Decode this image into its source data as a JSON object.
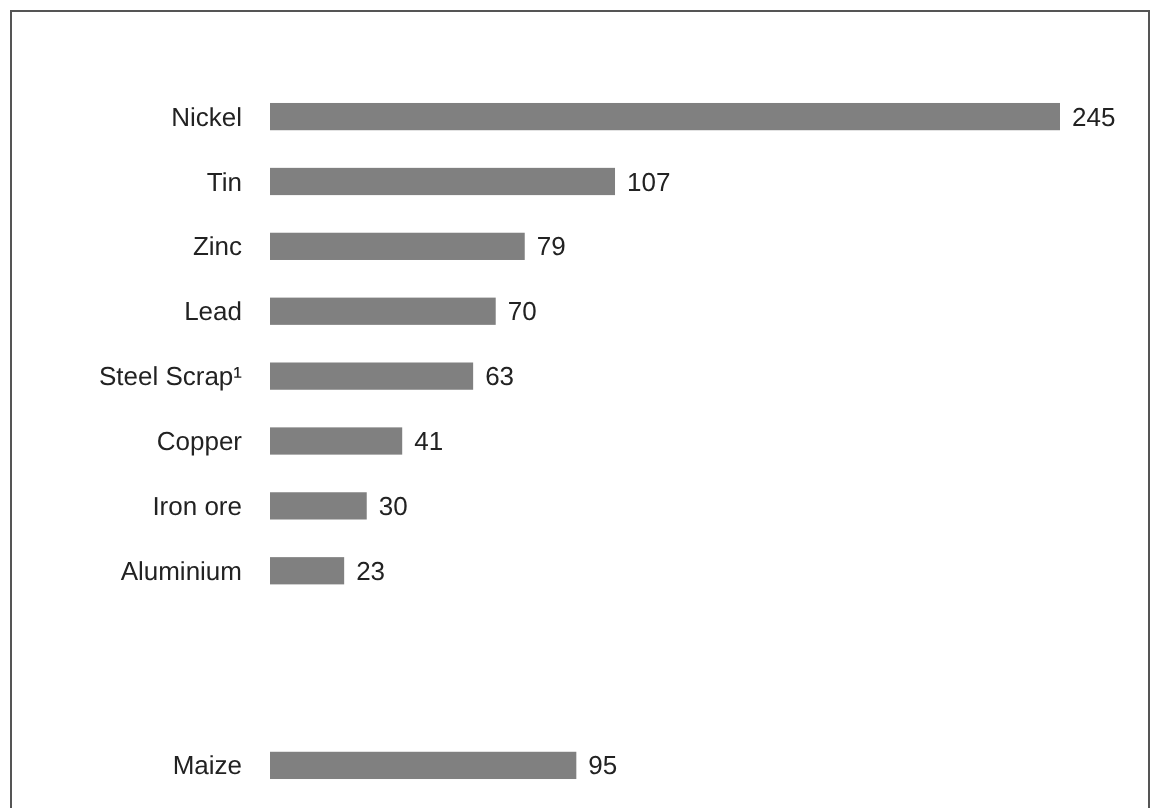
{
  "chart_data": {
    "type": "bar",
    "orientation": "horizontal",
    "categories": [
      "Nickel",
      "Tin",
      "Zinc",
      "Lead",
      "Steel Scrap¹",
      "Copper",
      "Iron ore",
      "Aluminium",
      null,
      null,
      "Maize"
    ],
    "values": [
      245,
      107,
      79,
      70,
      63,
      41,
      30,
      23,
      null,
      null,
      95
    ],
    "color": "#808080",
    "data_labels": true
  }
}
